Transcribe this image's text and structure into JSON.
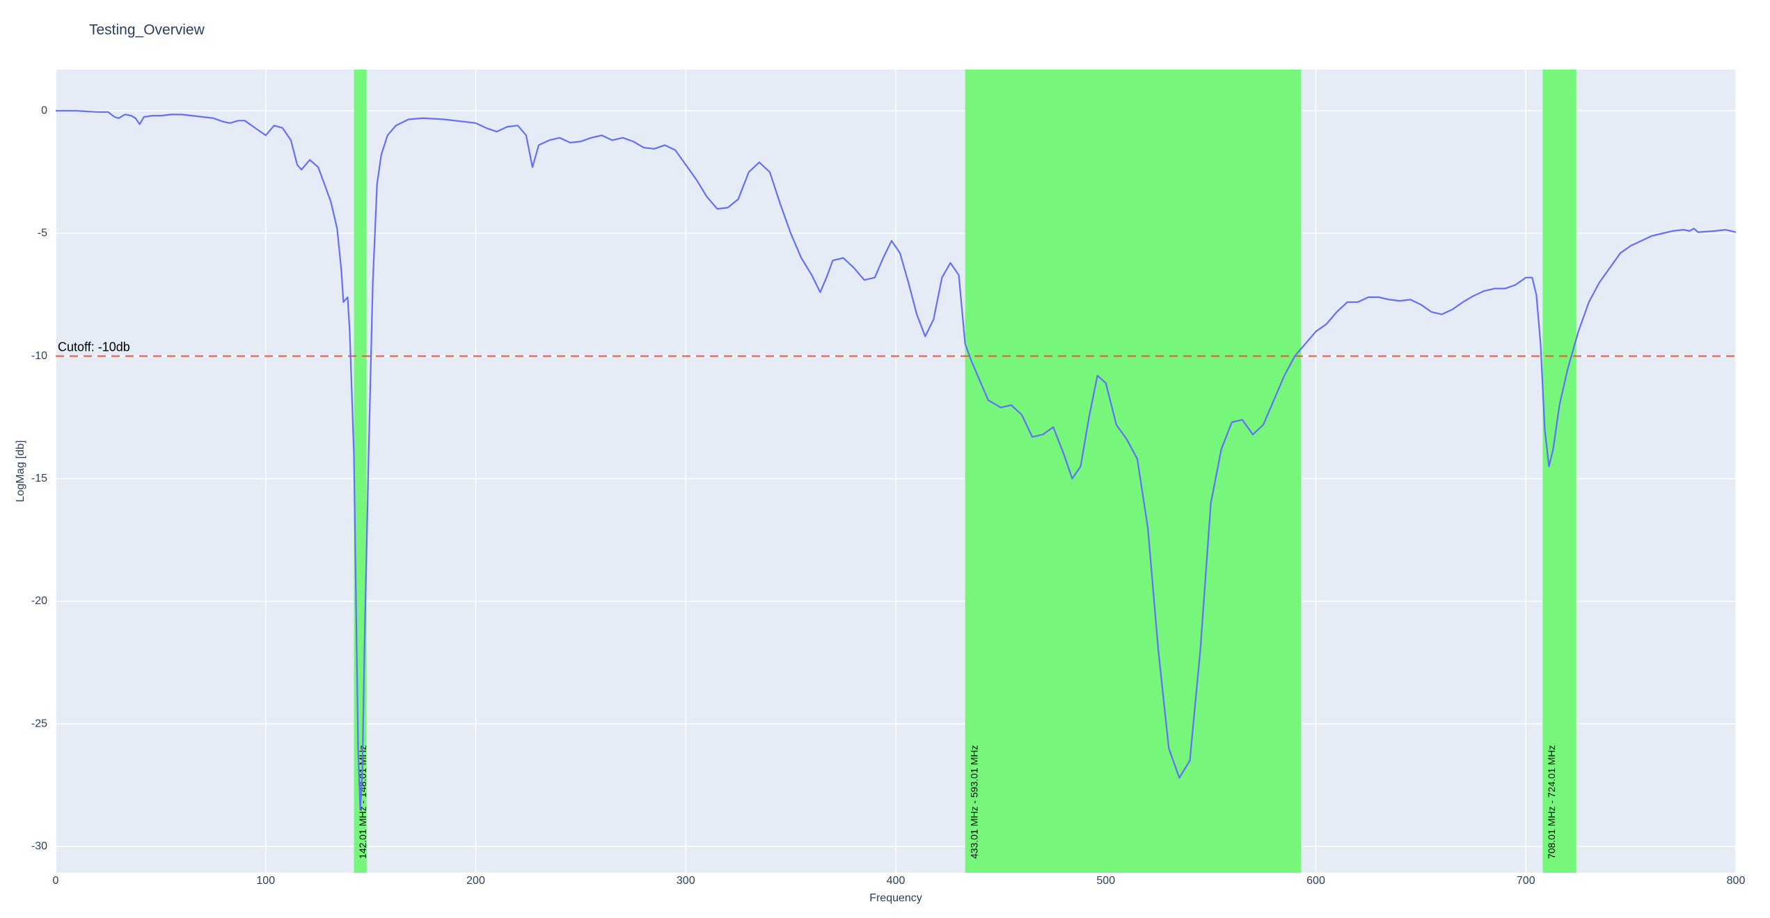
{
  "chart_data": {
    "type": "line",
    "title": "Testing_Overview",
    "x_label": "Frequency",
    "y_label": "LogMag [db]",
    "xlim": [
      0,
      800
    ],
    "ylim": [
      -31.07,
      1.68
    ],
    "xticks": [
      0,
      100,
      200,
      300,
      400,
      500,
      600,
      700,
      800
    ],
    "yticks": [
      -30,
      -25,
      -20,
      -15,
      -10,
      -5,
      0
    ],
    "grid": true,
    "series": [
      {
        "color": "#636efa",
        "x": [
          0,
          10,
          20,
          25,
          28,
          30,
          33,
          36,
          38,
          40,
          42,
          46,
          50,
          55,
          60,
          65,
          70,
          75,
          80,
          83,
          87,
          90,
          95,
          100,
          104,
          108,
          112,
          115,
          117,
          121,
          125,
          128,
          131,
          134,
          136,
          137,
          139,
          140,
          142,
          143,
          144,
          145,
          146,
          147,
          149,
          151,
          153,
          155,
          158,
          162,
          168,
          175,
          185,
          195,
          200,
          205,
          210,
          215,
          220,
          224,
          227,
          230,
          235,
          240,
          245,
          250,
          255,
          260,
          265,
          270,
          275,
          280,
          285,
          290,
          295,
          300,
          305,
          310,
          315,
          320,
          325,
          330,
          335,
          340,
          345,
          350,
          355,
          360,
          364,
          367,
          370,
          375,
          380,
          385,
          390,
          394,
          398,
          402,
          406,
          410,
          414,
          418,
          422,
          426,
          430,
          433,
          436,
          440,
          444,
          450,
          455,
          460,
          465,
          470,
          475,
          480,
          484,
          488,
          492,
          496,
          500,
          505,
          510,
          515,
          520,
          525,
          530,
          535,
          540,
          545,
          550,
          555,
          560,
          565,
          570,
          575,
          580,
          585,
          590,
          595,
          600,
          605,
          610,
          615,
          620,
          625,
          630,
          635,
          640,
          645,
          650,
          655,
          660,
          665,
          670,
          675,
          680,
          685,
          690,
          695,
          700,
          703,
          705,
          707,
          709,
          711,
          713,
          716,
          720,
          725,
          730,
          735,
          740,
          745,
          750,
          755,
          760,
          765,
          770,
          775,
          778,
          780,
          782,
          790,
          795,
          800
        ],
        "values": [
          0,
          0,
          -0.05,
          -0.05,
          -0.25,
          -0.3,
          -0.15,
          -0.2,
          -0.3,
          -0.55,
          -0.25,
          -0.2,
          -0.2,
          -0.15,
          -0.15,
          -0.2,
          -0.25,
          -0.3,
          -0.45,
          -0.5,
          -0.4,
          -0.4,
          -0.7,
          -1.0,
          -0.6,
          -0.7,
          -1.2,
          -2.2,
          -2.4,
          -2.0,
          -2.3,
          -3.0,
          -3.7,
          -4.8,
          -6.5,
          -7.8,
          -7.6,
          -9,
          -14,
          -20,
          -26,
          -28.5,
          -27,
          -22,
          -14,
          -7,
          -3,
          -1.8,
          -1.0,
          -0.6,
          -0.35,
          -0.3,
          -0.35,
          -0.45,
          -0.5,
          -0.7,
          -0.85,
          -0.65,
          -0.6,
          -1.0,
          -2.3,
          -1.4,
          -1.2,
          -1.1,
          -1.3,
          -1.25,
          -1.1,
          -1.0,
          -1.2,
          -1.1,
          -1.25,
          -1.5,
          -1.55,
          -1.4,
          -1.6,
          -2.2,
          -2.8,
          -3.5,
          -4.0,
          -3.95,
          -3.6,
          -2.5,
          -2.1,
          -2.5,
          -3.8,
          -5.0,
          -6.0,
          -6.7,
          -7.4,
          -6.8,
          -6.1,
          -6.0,
          -6.4,
          -6.9,
          -6.8,
          -6.0,
          -5.3,
          -5.8,
          -7.0,
          -8.3,
          -9.2,
          -8.5,
          -6.8,
          -6.2,
          -6.7,
          -9.5,
          -10.2,
          -11.0,
          -11.8,
          -12.1,
          -12.0,
          -12.4,
          -13.3,
          -13.2,
          -12.9,
          -14.0,
          -15.0,
          -14.5,
          -12.5,
          -10.8,
          -11.1,
          -12.8,
          -13.4,
          -14.2,
          -17,
          -22,
          -26,
          -27.2,
          -26.5,
          -22,
          -16,
          -13.8,
          -12.7,
          -12.6,
          -13.2,
          -12.8,
          -11.8,
          -10.8,
          -10.0,
          -9.5,
          -9.0,
          -8.7,
          -8.2,
          -7.8,
          -7.8,
          -7.6,
          -7.6,
          -7.7,
          -7.75,
          -7.7,
          -7.9,
          -8.2,
          -8.3,
          -8.1,
          -7.8,
          -7.55,
          -7.35,
          -7.25,
          -7.25,
          -7.1,
          -6.8,
          -6.8,
          -7.5,
          -9.5,
          -13,
          -14.5,
          -13.8,
          -12,
          -10.5,
          -9.0,
          -7.8,
          -7.0,
          -6.4,
          -5.8,
          -5.5,
          -5.3,
          -5.1,
          -5.0,
          -4.9,
          -4.85,
          -4.9,
          -4.8,
          -4.95,
          -4.9,
          -4.85,
          -4.95
        ]
      }
    ],
    "shaded_regions": [
      {
        "x0": 142.01,
        "x1": 148.01,
        "label": "142.01 MHz - 148.01 MHz",
        "color": "#76f77b"
      },
      {
        "x0": 433.01,
        "x1": 593.01,
        "label": "433.01 MHz - 593.01 MHz",
        "color": "#76f77b"
      },
      {
        "x0": 708.01,
        "x1": 724.01,
        "label": "708.01 MHz - 724.01 MHz",
        "color": "#76f77b"
      }
    ],
    "cutoff": {
      "value": -10,
      "label": "Cutoff: -10db",
      "color": "#ef553b"
    }
  }
}
